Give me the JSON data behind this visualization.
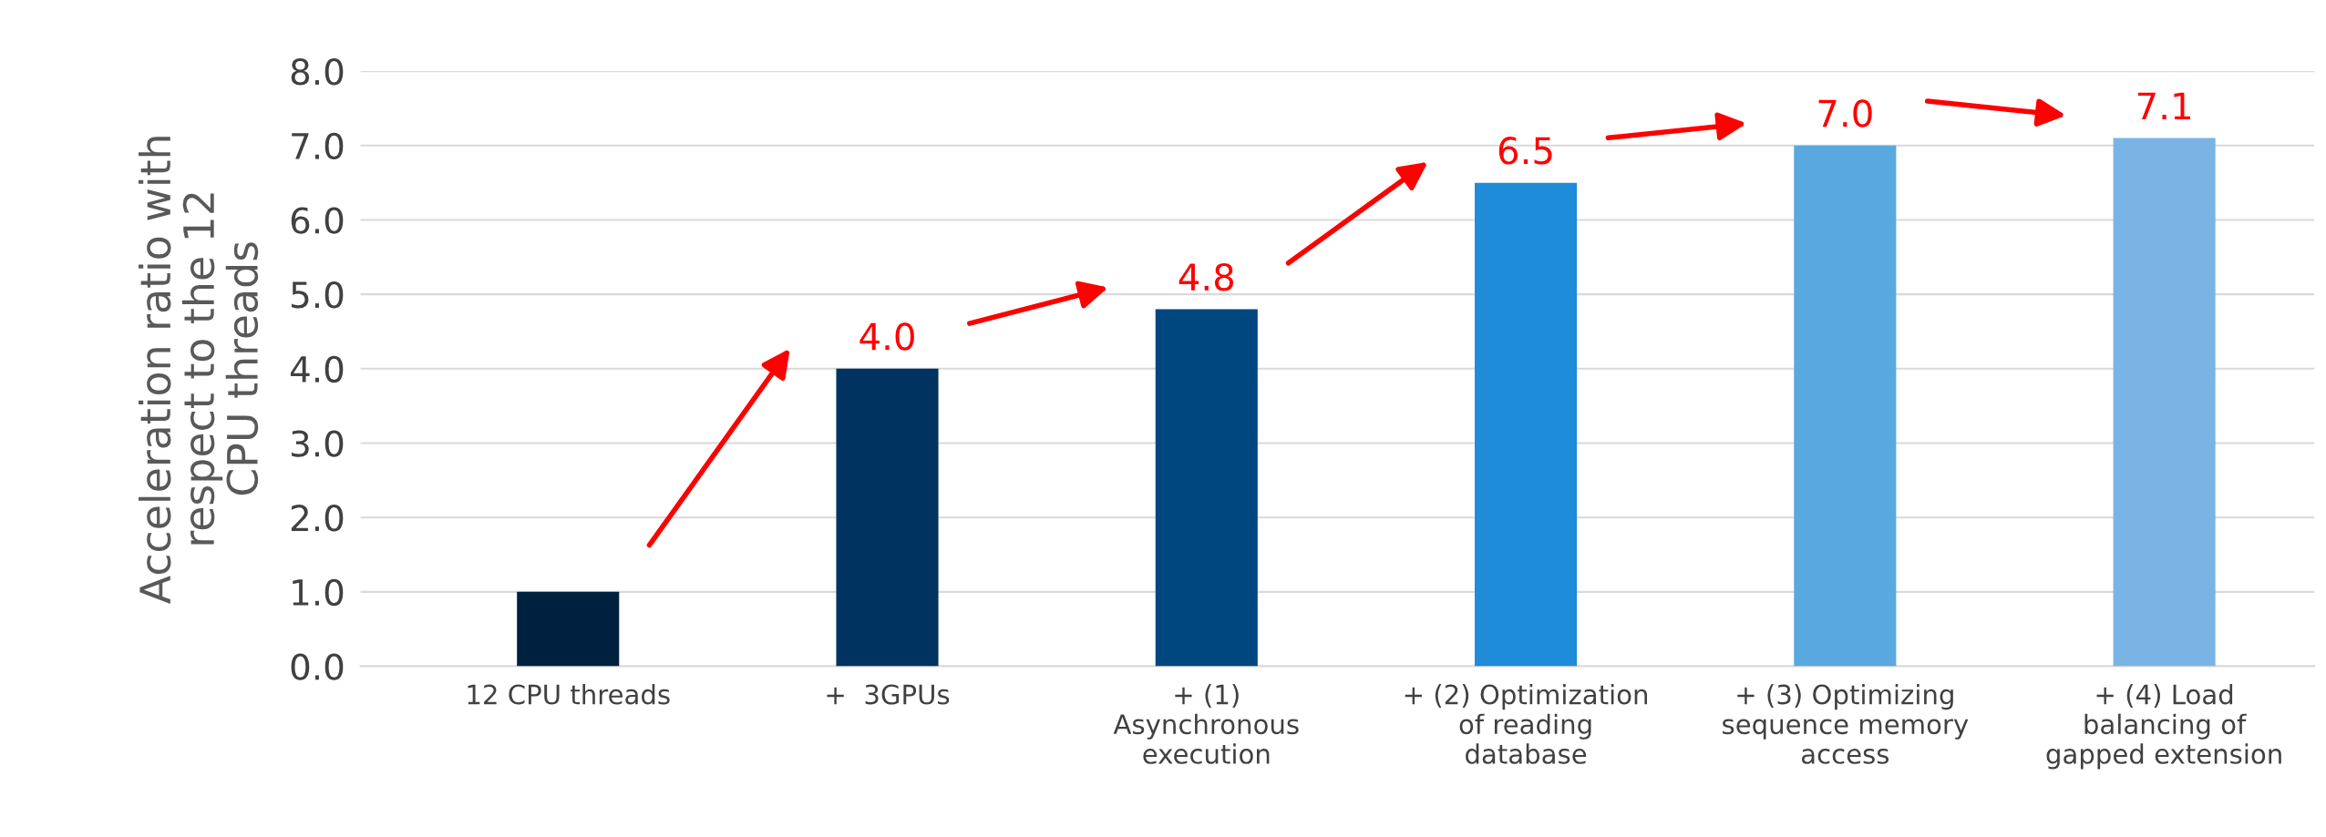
{
  "chart_data": {
    "type": "bar",
    "ylabel": "Acceleration ratio with\nrespect to the 12\nCPU threads",
    "categories": [
      "12 CPU threads",
      "+  3GPUs",
      "+ (1)\nAsynchronous\nexecution",
      "+ (2) Optimization\nof reading\ndatabase",
      "+ (3) Optimizing\nsequence memory\naccess",
      "+ (4) Load\nbalancing of\ngapped extension"
    ],
    "values": [
      1.0,
      4.0,
      4.8,
      6.5,
      7.0,
      7.1
    ],
    "value_labels": [
      null,
      "4.0",
      "4.8",
      "6.5",
      "7.0",
      "7.1"
    ],
    "colors": [
      "#002040",
      "#00335f",
      "#00467f",
      "#1e8cd8",
      "#5aa8e0",
      "#7ab4e4"
    ],
    "ylim": [
      0,
      8
    ],
    "yticks": [
      {
        "value": 0,
        "label": "0.0"
      },
      {
        "value": 1,
        "label": "1.0"
      },
      {
        "value": 2,
        "label": "2.0"
      },
      {
        "value": 3,
        "label": "3.0"
      },
      {
        "value": 4,
        "label": "4.0"
      },
      {
        "value": 5,
        "label": "5.0"
      },
      {
        "value": 6,
        "label": "6.0"
      },
      {
        "value": 7,
        "label": "7.0"
      },
      {
        "value": 8,
        "label": "8.0"
      }
    ],
    "grid": "y"
  }
}
